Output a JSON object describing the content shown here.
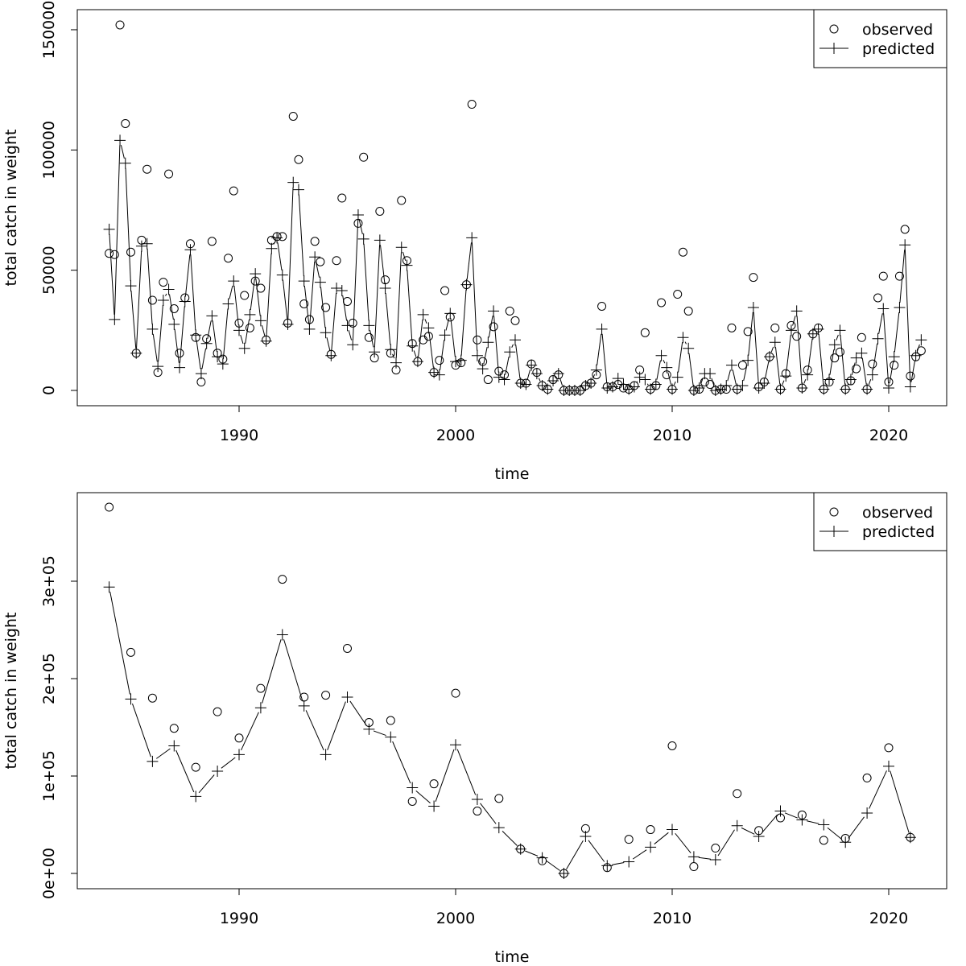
{
  "chart_data": [
    {
      "type": "line",
      "xlabel": "time",
      "ylabel": "total catch in weight",
      "x_ticks": [
        1990,
        2000,
        2010,
        2020
      ],
      "y_ticks": [
        0,
        50000,
        100000,
        150000
      ],
      "y_tick_labels": [
        "0",
        "50000",
        "100000",
        "150000"
      ],
      "x_start": 1984,
      "x_step": 0.25,
      "legend": {
        "position": "top-right",
        "entries": [
          "observed",
          "predicted"
        ]
      },
      "series": [
        {
          "name": "observed",
          "marker": "circle",
          "values": [
            57000,
            56500,
            152000,
            111000,
            57500,
            15500,
            62500,
            92000,
            37500,
            7500,
            45000,
            90000,
            34000,
            15500,
            38500,
            61000,
            22000,
            3500,
            21500,
            62000,
            15500,
            13000,
            55000,
            83000,
            28000,
            39500,
            26000,
            45500,
            42500,
            21000,
            62500,
            64000,
            64000,
            28000,
            114000,
            96000,
            36000,
            29500,
            62000,
            53500,
            34500,
            15000,
            54000,
            80000,
            37000,
            28000,
            69500,
            97000,
            22000,
            13500,
            74500,
            46000,
            15500,
            8500,
            79000,
            54000,
            19500,
            12000,
            21000,
            22500,
            7500,
            12500,
            41500,
            30500,
            10500,
            11500,
            44000,
            119000,
            21000,
            12000,
            4500,
            26500,
            8000,
            6500,
            33000,
            29000,
            3000,
            3000,
            11000,
            7500,
            2000,
            500,
            4500,
            6500,
            0,
            0,
            0,
            0,
            2000,
            3000,
            6500,
            35000,
            1500,
            1500,
            2500,
            1000,
            500,
            2000,
            8500,
            24000,
            500,
            2000,
            36500,
            6500,
            500,
            40000,
            57500,
            33000,
            0,
            500,
            3500,
            2500,
            0,
            500,
            500,
            26000,
            500,
            10500,
            24500,
            47000,
            1500,
            3500,
            14000,
            26000,
            500,
            7000,
            27000,
            22500,
            1000,
            8500,
            23500,
            26000,
            500,
            3500,
            13500,
            16000,
            500,
            4000,
            9000,
            22000,
            500,
            11000,
            38500,
            47500,
            3500,
            10500,
            47500,
            67000,
            6000,
            14000,
            16500
          ]
        },
        {
          "name": "predicted",
          "marker": "plus",
          "values": [
            67000,
            29500,
            104000,
            94500,
            43500,
            15500,
            60000,
            61000,
            25500,
            10000,
            37500,
            42000,
            27500,
            9500,
            37000,
            58500,
            23000,
            7000,
            19500,
            31000,
            14000,
            11000,
            36000,
            45500,
            25000,
            17500,
            31500,
            48500,
            29000,
            20500,
            59000,
            63500,
            48000,
            27500,
            86500,
            83500,
            45500,
            25500,
            55500,
            45000,
            24000,
            14500,
            42500,
            41500,
            27000,
            19000,
            73000,
            63000,
            27000,
            16000,
            62500,
            42500,
            17000,
            11500,
            59500,
            52000,
            18500,
            12000,
            31500,
            26000,
            7500,
            6500,
            23000,
            32000,
            12000,
            12500,
            44000,
            63500,
            14500,
            9000,
            20000,
            33000,
            5500,
            4500,
            16000,
            21000,
            3000,
            2500,
            10500,
            7000,
            2000,
            500,
            4000,
            7000,
            0,
            0,
            0,
            0,
            2000,
            3000,
            8500,
            25500,
            1000,
            1500,
            5000,
            2500,
            500,
            1500,
            5500,
            4500,
            500,
            2500,
            14500,
            9500,
            500,
            5500,
            22000,
            17500,
            0,
            1000,
            7000,
            7000,
            0,
            500,
            2000,
            10500,
            500,
            2000,
            12500,
            34500,
            1000,
            3000,
            14000,
            20000,
            500,
            6000,
            25000,
            33000,
            1000,
            6500,
            23500,
            25500,
            500,
            4500,
            19000,
            25000,
            500,
            4500,
            13500,
            15500,
            500,
            6500,
            21500,
            34000,
            1000,
            14000,
            34500,
            60500,
            1500,
            14500,
            21000
          ]
        }
      ]
    },
    {
      "type": "line",
      "xlabel": "time",
      "ylabel": "total catch in weight",
      "x_ticks": [
        1990,
        2000,
        2010,
        2020
      ],
      "y_ticks": [
        0,
        100000,
        200000,
        300000
      ],
      "y_tick_labels": [
        "0e+00",
        "1e+05",
        "2e+05",
        "3e+05"
      ],
      "x_start": 1984,
      "x_step": 1,
      "legend": {
        "position": "top-right",
        "entries": [
          "observed",
          "predicted"
        ]
      },
      "series": [
        {
          "name": "observed",
          "marker": "circle",
          "values": [
            376000,
            227000,
            180000,
            149000,
            109000,
            166000,
            139000,
            190000,
            302000,
            181000,
            183000,
            231000,
            155000,
            157000,
            74000,
            92000,
            185000,
            64000,
            77000,
            25000,
            13000,
            0,
            46000,
            6000,
            35000,
            45000,
            131000,
            7000,
            26000,
            82000,
            44000,
            57000,
            60000,
            34000,
            36000,
            98000,
            129000,
            37000
          ]
        },
        {
          "name": "predicted",
          "marker": "plus",
          "values": [
            294000,
            179000,
            115000,
            131000,
            79000,
            105000,
            122000,
            170000,
            245000,
            172000,
            122000,
            181000,
            148000,
            140000,
            88000,
            69000,
            132000,
            76000,
            47000,
            25000,
            16000,
            0,
            38000,
            8000,
            12000,
            27000,
            45000,
            17000,
            14000,
            49000,
            38000,
            64000,
            55000,
            50000,
            32000,
            62000,
            110000,
            37000
          ]
        }
      ]
    }
  ]
}
